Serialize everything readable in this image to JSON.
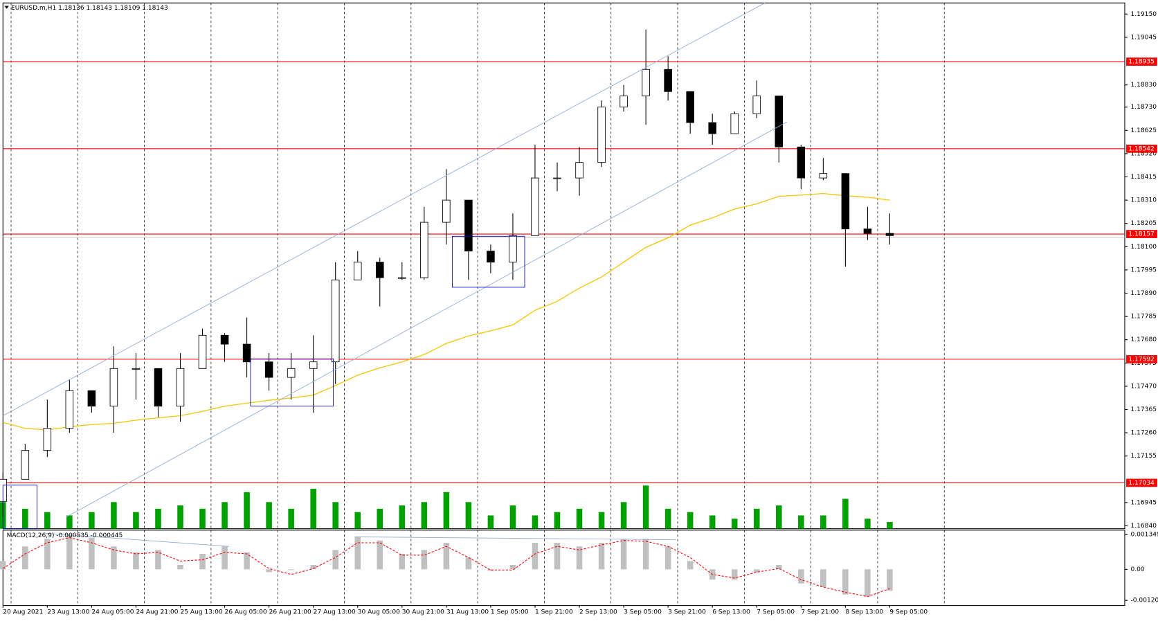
{
  "chart_data": {
    "type": "candlestick",
    "title": "EURUSD.m,H1  1.18136 1.18143 1.18109 1.18143",
    "categories": [
      "20 Aug 2021",
      null,
      "23 Aug 13:00",
      null,
      "24 Aug 05:00",
      null,
      "24 Aug 21:00",
      null,
      "25 Aug 13:00",
      null,
      "26 Aug 05:00",
      null,
      "26 Aug 21:00",
      null,
      "27 Aug 13:00",
      null,
      "30 Aug 05:00",
      null,
      "30 Aug 21:00",
      null,
      "31 Aug 13:00",
      null,
      "1 Sep 05:00",
      null,
      "1 Sep 21:00",
      null,
      "2 Sep 13:00",
      null,
      "3 Sep 05:00",
      null,
      "3 Sep 21:00",
      null,
      "6 Sep 13:00",
      null,
      "7 Sep 05:00",
      null,
      "7 Sep 21:00",
      null,
      "8 Sep 13:00",
      null,
      "9 Sep 05:00"
    ],
    "open": [
      1.1695,
      1.1705,
      1.1718,
      1.1728,
      1.1745,
      1.1738,
      1.1755,
      1.1755,
      1.1738,
      1.1755,
      1.177,
      1.1766,
      1.1758,
      1.1751,
      1.1755,
      1.1758,
      1.1795,
      1.1803,
      1.1796,
      1.1796,
      1.1821,
      1.1831,
      1.1808,
      1.1803,
      1.1815,
      1.1841,
      1.1841,
      1.1848,
      1.1873,
      1.1878,
      1.189,
      1.188,
      1.1866,
      1.1861,
      1.187,
      1.1878,
      1.1855,
      1.1841,
      1.1843,
      1.1818,
      1.1816
    ],
    "high": [
      1.1708,
      1.1721,
      1.1741,
      1.175,
      1.1745,
      1.1765,
      1.1762,
      1.1755,
      1.1762,
      1.1773,
      1.1771,
      1.1778,
      1.1762,
      1.1762,
      1.177,
      1.1803,
      1.1808,
      1.1805,
      1.1803,
      1.1828,
      1.1845,
      1.1831,
      1.1811,
      1.1825,
      1.1856,
      1.1848,
      1.1855,
      1.1876,
      1.1883,
      1.1908,
      1.1896,
      1.188,
      1.187,
      1.1871,
      1.1885,
      1.1878,
      1.1856,
      1.185,
      1.1843,
      1.1828,
      1.1825
    ],
    "low": [
      1.1688,
      1.1705,
      1.1715,
      1.1726,
      1.1735,
      1.1726,
      1.1741,
      1.1733,
      1.1731,
      1.1755,
      1.1758,
      1.1751,
      1.1745,
      1.1741,
      1.1735,
      1.1748,
      1.1795,
      1.1783,
      1.1795,
      1.1795,
      1.1811,
      1.1795,
      1.1798,
      1.1795,
      1.1815,
      1.1835,
      1.1833,
      1.1846,
      1.1871,
      1.1865,
      1.1876,
      1.1861,
      1.1856,
      1.1861,
      1.1868,
      1.1848,
      1.1836,
      1.184,
      1.1801,
      1.1813,
      1.1811
    ],
    "close": [
      1.1705,
      1.1718,
      1.1728,
      1.1745,
      1.1738,
      1.1755,
      1.1755,
      1.1738,
      1.1755,
      1.177,
      1.1766,
      1.1758,
      1.1751,
      1.1755,
      1.1758,
      1.1795,
      1.1803,
      1.1796,
      1.1796,
      1.1821,
      1.1831,
      1.1808,
      1.1803,
      1.1815,
      1.1841,
      1.1841,
      1.1848,
      1.1873,
      1.1878,
      1.189,
      1.188,
      1.1866,
      1.1861,
      1.187,
      1.1878,
      1.1855,
      1.1841,
      1.1843,
      1.1818,
      1.1816,
      1.1815
    ],
    "ma": {
      "color": "#f5c400",
      "values": [
        1.17307,
        1.1728,
        1.17273,
        1.17287,
        1.17297,
        1.17303,
        1.17317,
        1.17327,
        1.17337,
        1.17357,
        1.1738,
        1.17393,
        1.17407,
        1.17417,
        1.1743,
        1.17473,
        1.1752,
        1.17553,
        1.1758,
        1.17613,
        1.17663,
        1.17697,
        1.1772,
        1.17747,
        1.17813,
        1.17853,
        1.17913,
        1.17963,
        1.1803,
        1.18097,
        1.1814,
        1.18197,
        1.1823,
        1.1827,
        1.18293,
        1.18327,
        1.18333,
        1.1834,
        1.1833,
        1.18323,
        1.1831
      ]
    },
    "volume": {
      "color": "#00a000",
      "values": [
        40,
        30,
        25,
        20,
        25,
        40,
        25,
        30,
        35,
        30,
        40,
        55,
        40,
        30,
        60,
        40,
        25,
        30,
        35,
        40,
        55,
        40,
        20,
        35,
        20,
        25,
        30,
        25,
        40,
        65,
        30,
        25,
        20,
        15,
        30,
        35,
        20,
        20,
        45,
        15,
        10
      ]
    },
    "vlim": [
      0,
      100
    ],
    "ylim": [
      1.16827,
      1.192
    ],
    "yticks": [
      {
        "value": 1.1915,
        "label": "1.19150"
      },
      1.19045,
      {
        "value": 1.1883,
        "label": "1.18830"
      },
      {
        "value": 1.1873,
        "label": "1.18730"
      },
      1.18625,
      {
        "value": 1.1852,
        "label": "1.18520"
      },
      1.18415,
      {
        "value": 1.1831,
        "label": "1.18310"
      },
      1.18205,
      {
        "value": 1.181,
        "label": "1.18100"
      },
      1.17995,
      {
        "value": 1.1789,
        "label": "1.17890"
      },
      1.17785,
      {
        "value": 1.1768,
        "label": "1.17680"
      },
      1.17575,
      {
        "value": 1.1747,
        "label": "1.17470"
      },
      1.17365,
      {
        "value": 1.1726,
        "label": "1.17260"
      },
      1.17155,
      1.16945,
      {
        "value": 1.1684,
        "label": "1.16840"
      }
    ],
    "hlines": [
      1.18935,
      1.18542,
      1.18157,
      1.17592,
      1.17034
    ],
    "hline_color": "#ff0000",
    "bid": 1.18143,
    "macd": {
      "title": "MACD(12,26,9) -0.000535 -0.000445",
      "histogram": {
        "color": "#c0c0c0",
        "values": [
          0.00032,
          0.00089,
          0.00118,
          0.00132,
          0.00123,
          0.00089,
          0.00066,
          0.00075,
          0.00017,
          0.0006,
          0.00089,
          0.00066,
          -0.00011,
          -3e-05,
          0.00017,
          0.00075,
          0.00126,
          0.00112,
          0.0006,
          0.00075,
          0.00103,
          0.00046,
          -6e-05,
          0.00017,
          0.00103,
          0.00103,
          0.00089,
          0.00103,
          0.00118,
          0.00118,
          0.00089,
          0.00032,
          -0.0004,
          -0.0004,
          -0.00011,
          0.00017,
          -0.00055,
          -0.00069,
          -0.00098,
          -0.00106,
          -0.00083
        ]
      },
      "signal": {
        "color": "#ff0000",
        "values": [
          3e-05,
          0.0006,
          0.00103,
          0.00123,
          0.00103,
          0.00075,
          0.0006,
          0.00066,
          0.00032,
          0.00037,
          0.00066,
          0.0006,
          3e-05,
          -0.0002,
          3e-05,
          0.00046,
          0.00103,
          0.00103,
          0.00055,
          0.00055,
          0.00089,
          0.00046,
          -3e-05,
          -3e-05,
          0.0006,
          0.00089,
          0.00075,
          0.00095,
          0.00112,
          0.00109,
          0.00089,
          0.00046,
          -0.0002,
          -0.00034,
          -0.00011,
          3e-05,
          -0.0004,
          -0.00069,
          -0.00089,
          -0.00106,
          -0.00075
        ]
      },
      "ylim": [
        -0.001406,
        0.00152
      ],
      "yticks": [
        0.001349,
        {
          "value": 0,
          "label": "0.00"
        },
        -0.001206
      ]
    }
  }
}
